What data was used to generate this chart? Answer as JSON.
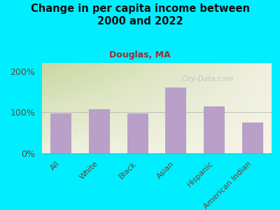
{
  "title": "Change in per capita income between\n2000 and 2022",
  "subtitle": "Douglas, MA",
  "categories": [
    "All",
    "White",
    "Black",
    "Asian",
    "Hispanic",
    "American Indian"
  ],
  "values": [
    97,
    107,
    97,
    160,
    115,
    75
  ],
  "bar_color": "#b8a0c8",
  "background_outer": "#00eeff",
  "background_inner_topleft": "#c8d8a0",
  "background_inner_right": "#f0f0e0",
  "title_color": "#111111",
  "subtitle_color": "#993333",
  "tick_label_color": "#664433",
  "watermark": "City-Data.com",
  "ylim": [
    0,
    220
  ],
  "yticks": [
    0,
    100,
    200
  ],
  "ytick_labels": [
    "0%",
    "100%",
    "200%"
  ]
}
